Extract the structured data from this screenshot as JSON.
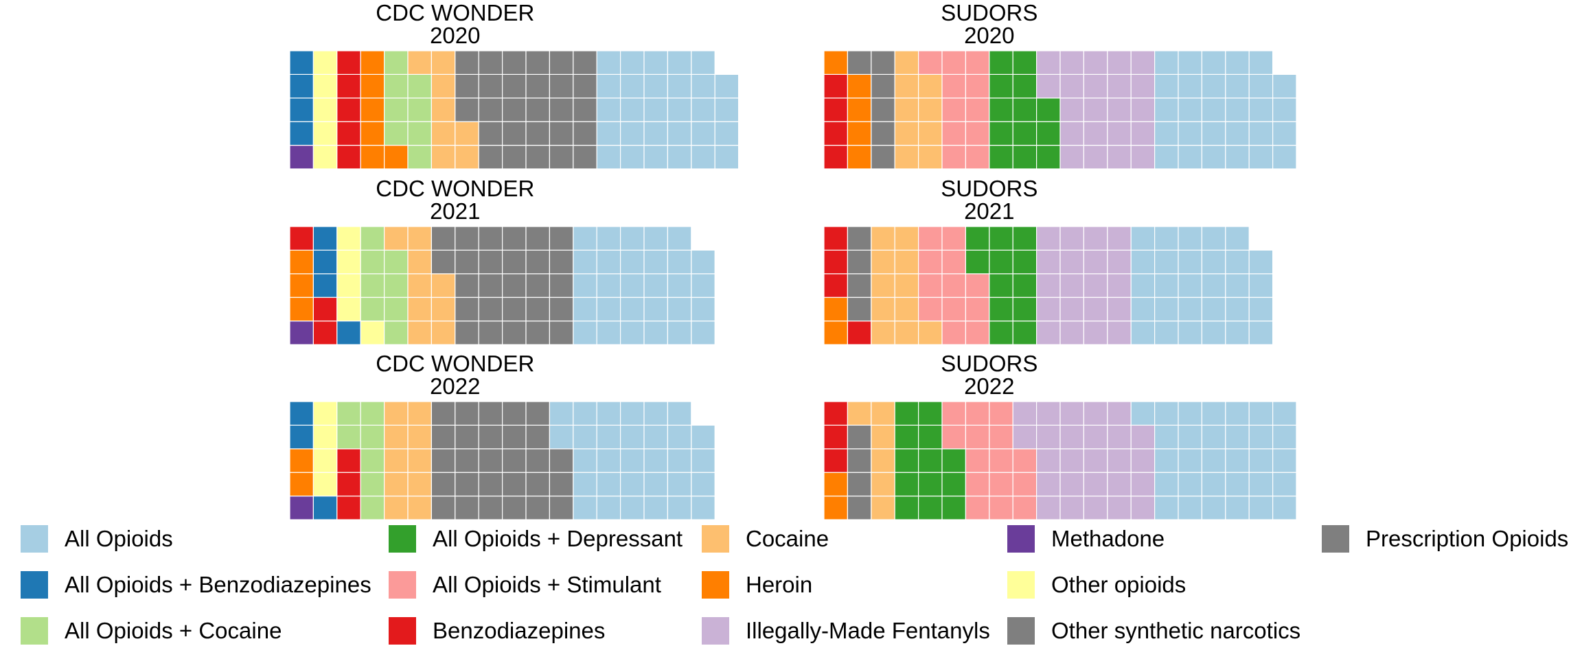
{
  "chart_data": {
    "type": "waffle",
    "rows_per_column": 5,
    "fill_order": "column-wise, bottom to top, left to right",
    "categories": [
      "All Opioids",
      "All Opioids + Benzodiazepines",
      "All Opioids + Cocaine",
      "All Opioids + Depressant",
      "All Opioids + Stimulant",
      "Benzodiazepines",
      "Cocaine",
      "Heroin",
      "Illegally-Made Fentanyls",
      "Methadone",
      "Other opioids",
      "Other synthetic narcotics",
      "Prescription Opioids"
    ],
    "colors": {
      "All Opioids": "#a6cee3",
      "All Opioids + Benzodiazepines": "#1f78b4",
      "All Opioids + Cocaine": "#b2df8a",
      "All Opioids + Depressant": "#33a02c",
      "All Opioids + Stimulant": "#fb9a99",
      "Benzodiazepines": "#e31a1c",
      "Cocaine": "#fdbf6f",
      "Heroin": "#ff7f00",
      "Illegally-Made Fentanyls": "#cab2d6",
      "Methadone": "#6a3d9a",
      "Other opioids": "#ffff99",
      "Other synthetic narcotics": "#7f7f7f",
      "Prescription Opioids": "#7f7f7f"
    },
    "panels": [
      {
        "source": "CDC WONDER",
        "year": "2020",
        "segments": [
          {
            "category": "Methadone",
            "count": 1
          },
          {
            "category": "All Opioids + Benzodiazepines",
            "count": 4
          },
          {
            "category": "Other opioids",
            "count": 5
          },
          {
            "category": "Benzodiazepines",
            "count": 5
          },
          {
            "category": "Heroin",
            "count": 6
          },
          {
            "category": "All Opioids + Cocaine",
            "count": 8
          },
          {
            "category": "Cocaine",
            "count": 8
          },
          {
            "category": "Prescription Opioids",
            "count": 28
          },
          {
            "category": "All Opioids",
            "count": 29
          }
        ]
      },
      {
        "source": "SUDORS",
        "year": "2020",
        "segments": [
          {
            "category": "Benzodiazepines",
            "count": 4
          },
          {
            "category": "Heroin",
            "count": 5
          },
          {
            "category": "Prescription Opioids",
            "count": 6
          },
          {
            "category": "Cocaine",
            "count": 9
          },
          {
            "category": "All Opioids + Stimulant",
            "count": 11
          },
          {
            "category": "All Opioids + Depressant",
            "count": 13
          },
          {
            "category": "Illegally-Made Fentanyls",
            "count": 22
          },
          {
            "category": "All Opioids",
            "count": 29
          }
        ]
      },
      {
        "source": "CDC WONDER",
        "year": "2021",
        "segments": [
          {
            "category": "Methadone",
            "count": 1
          },
          {
            "category": "Heroin",
            "count": 3
          },
          {
            "category": "Benzodiazepines",
            "count": 3
          },
          {
            "category": "All Opioids + Benzodiazepines",
            "count": 4
          },
          {
            "category": "Other opioids",
            "count": 5
          },
          {
            "category": "All Opioids + Cocaine",
            "count": 8
          },
          {
            "category": "Cocaine",
            "count": 9
          },
          {
            "category": "Prescription Opioids",
            "count": 27
          },
          {
            "category": "All Opioids",
            "count": 29
          }
        ]
      },
      {
        "source": "SUDORS",
        "year": "2021",
        "segments": [
          {
            "category": "Heroin",
            "count": 2
          },
          {
            "category": "Benzodiazepines",
            "count": 4
          },
          {
            "category": "Prescription Opioids",
            "count": 4
          },
          {
            "category": "Cocaine",
            "count": 11
          },
          {
            "category": "All Opioids + Stimulant",
            "count": 12
          },
          {
            "category": "All Opioids + Depressant",
            "count": 12
          },
          {
            "category": "Illegally-Made Fentanyls",
            "count": 20
          },
          {
            "category": "All Opioids",
            "count": 29
          }
        ]
      },
      {
        "source": "CDC WONDER",
        "year": "2022",
        "segments": [
          {
            "category": "Methadone",
            "count": 1
          },
          {
            "category": "Heroin",
            "count": 2
          },
          {
            "category": "All Opioids + Benzodiazepines",
            "count": 3
          },
          {
            "category": "Other opioids",
            "count": 4
          },
          {
            "category": "Benzodiazepines",
            "count": 3
          },
          {
            "category": "All Opioids + Cocaine",
            "count": 7
          },
          {
            "category": "Cocaine",
            "count": 10
          },
          {
            "category": "Prescription Opioids",
            "count": 28
          },
          {
            "category": "All Opioids",
            "count": 31
          }
        ]
      },
      {
        "source": "SUDORS",
        "year": "2022",
        "segments": [
          {
            "category": "Heroin",
            "count": 2
          },
          {
            "category": "Benzodiazepines",
            "count": 3
          },
          {
            "category": "Prescription Opioids",
            "count": 4
          },
          {
            "category": "Cocaine",
            "count": 6
          },
          {
            "category": "All Opioids + Depressant",
            "count": 13
          },
          {
            "category": "All Opioids + Stimulant",
            "count": 15
          },
          {
            "category": "Illegally-Made Fentanyls",
            "count": 26
          },
          {
            "category": "All Opioids",
            "count": 31
          }
        ]
      }
    ],
    "legend": {
      "position": "bottom",
      "columns": [
        [
          "All Opioids",
          "All Opioids + Benzodiazepines",
          "All Opioids + Cocaine"
        ],
        [
          "All Opioids + Depressant",
          "All Opioids + Stimulant",
          "Benzodiazepines"
        ],
        [
          "Cocaine",
          "Heroin",
          "Illegally-Made Fentanyls"
        ],
        [
          "Methadone",
          "Other opioids",
          "Other synthetic narcotics"
        ],
        [
          "Prescription Opioids"
        ]
      ]
    },
    "axes": "none",
    "grid": false
  }
}
